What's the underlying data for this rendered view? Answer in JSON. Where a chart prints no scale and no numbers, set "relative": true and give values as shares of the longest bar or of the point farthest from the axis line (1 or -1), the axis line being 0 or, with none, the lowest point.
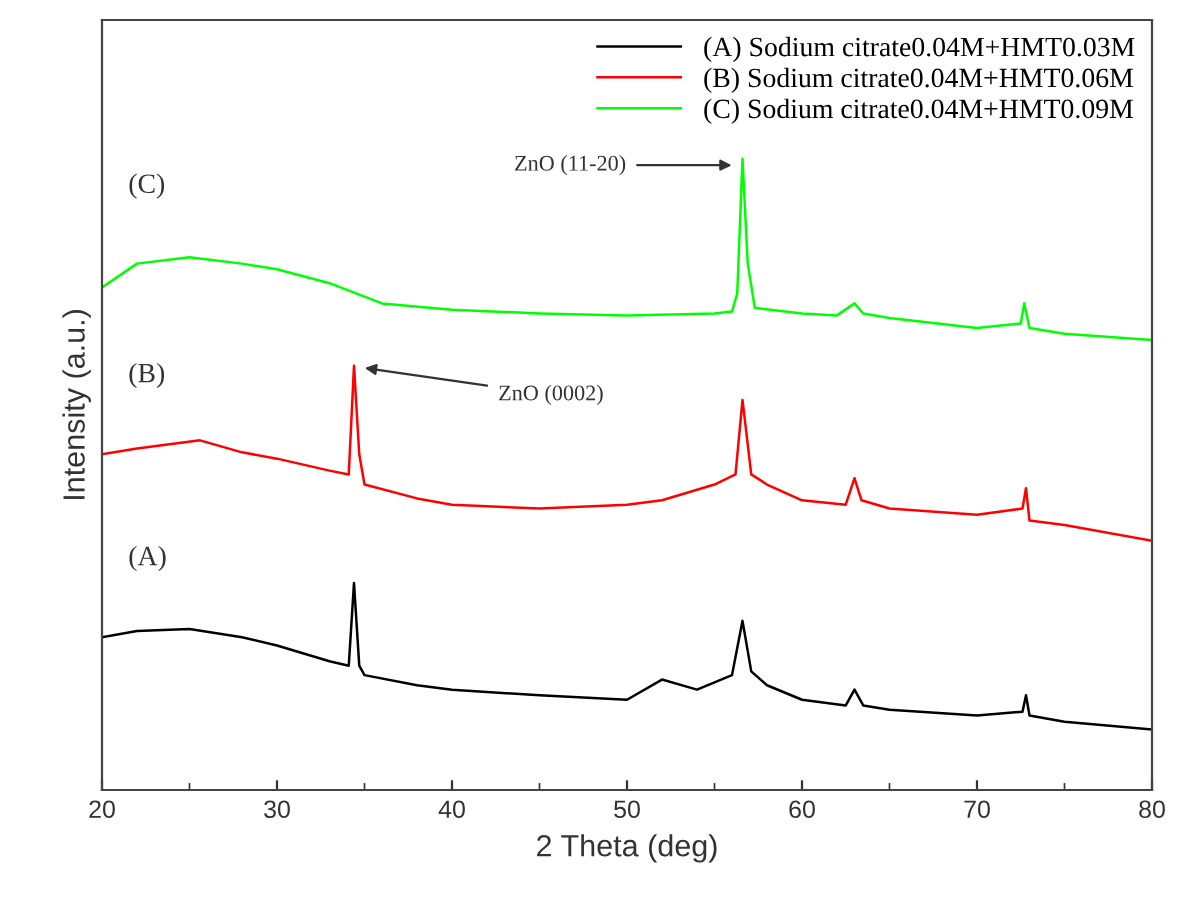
{
  "chart_data": {
    "type": "line",
    "xlabel": "2 Theta (deg)",
    "ylabel": "Intensity (a.u.)",
    "relative": true,
    "xlim": [
      20,
      80
    ],
    "xticks": [
      20,
      30,
      40,
      50,
      60,
      70,
      80
    ],
    "tick_labels": "x",
    "legend": "top right",
    "grid": false,
    "series": [
      {
        "name": "(A) Sodium citrate0.04M+HMT0.03M",
        "color": "#000000",
        "x": [
          20,
          22,
          25,
          28,
          30,
          33,
          34.1,
          34.4,
          34.7,
          35,
          38,
          40,
          45,
          50,
          52,
          54,
          56,
          56.6,
          57.1,
          58,
          60,
          62.5,
          63,
          63.5,
          65,
          70,
          72.6,
          72.8,
          73,
          75,
          80
        ],
        "values": [
          0.242,
          0.252,
          0.255,
          0.242,
          0.229,
          0.204,
          0.197,
          0.328,
          0.197,
          0.182,
          0.166,
          0.159,
          0.15,
          0.143,
          0.175,
          0.159,
          0.182,
          0.268,
          0.188,
          0.166,
          0.143,
          0.134,
          0.159,
          0.134,
          0.127,
          0.118,
          0.124,
          0.15,
          0.118,
          0.108,
          0.096
        ]
      },
      {
        "name": "(B) Sodium citrate0.04M+HMT0.06M",
        "color": "#ff0000",
        "x": [
          20,
          22,
          25.6,
          28,
          30,
          33,
          34.1,
          34.4,
          34.7,
          35,
          38,
          40,
          45,
          50,
          52,
          55,
          56.2,
          56.6,
          57.1,
          58,
          60,
          62.5,
          63,
          63.4,
          65,
          70,
          72.6,
          72.8,
          73,
          75,
          80
        ],
        "values": [
          0.532,
          0.541,
          0.554,
          0.535,
          0.525,
          0.506,
          0.5,
          0.672,
          0.532,
          0.484,
          0.462,
          0.452,
          0.446,
          0.452,
          0.459,
          0.484,
          0.5,
          0.618,
          0.5,
          0.484,
          0.459,
          0.452,
          0.494,
          0.459,
          0.446,
          0.436,
          0.446,
          0.478,
          0.427,
          0.42,
          0.395
        ]
      },
      {
        "name": "(C) Sodium citrate0.04M+HMT0.09M",
        "color": "#00ff00",
        "x": [
          20,
          22,
          25,
          28,
          30,
          33,
          36,
          40,
          45,
          50,
          55,
          56,
          56.3,
          56.6,
          56.9,
          57.3,
          60,
          62,
          63,
          63.5,
          65,
          70,
          72.5,
          72.7,
          73,
          75,
          80
        ],
        "values": [
          0.796,
          0.834,
          0.844,
          0.834,
          0.825,
          0.803,
          0.771,
          0.761,
          0.755,
          0.752,
          0.755,
          0.758,
          0.787,
          1.0,
          0.834,
          0.764,
          0.755,
          0.752,
          0.771,
          0.755,
          0.748,
          0.732,
          0.739,
          0.771,
          0.732,
          0.723,
          0.713
        ]
      }
    ],
    "annotations": [
      {
        "text": "(C)",
        "x": 21.5,
        "y": 0.84
      },
      {
        "text": "(B)",
        "x": 21.5,
        "y": 0.54
      },
      {
        "text": "(A)",
        "x": 21.5,
        "y": 0.25
      },
      {
        "text": "ZnO (11-20)",
        "x": 56.3,
        "y": 0.99
      },
      {
        "text": "ZnO (0002)",
        "x": 34.7,
        "y": 0.67
      }
    ]
  }
}
